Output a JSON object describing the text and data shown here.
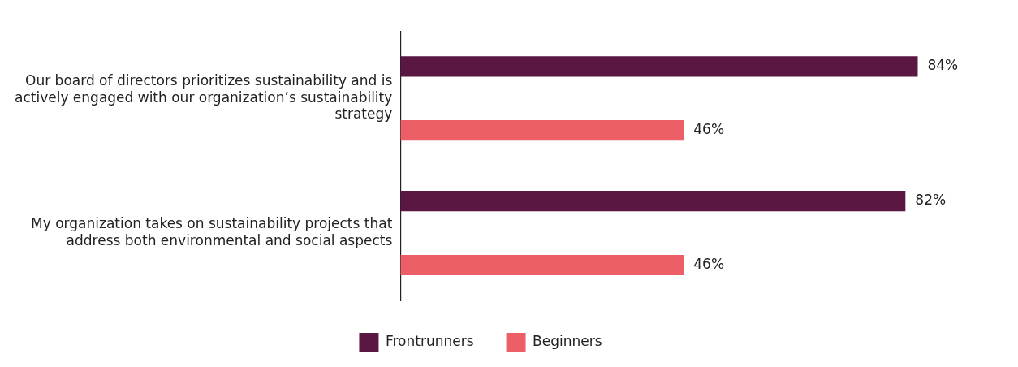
{
  "chart_data": {
    "type": "bar",
    "orientation": "horizontal",
    "categories": [
      "Our board of directors prioritizes sustainability and is actively engaged with our organization’s sustainability strategy",
      "My organization takes on sustainability projects that address both environmental and social aspects"
    ],
    "series": [
      {
        "name": "Frontrunners",
        "color": "#5a1741",
        "values": [
          84,
          82
        ],
        "value_labels": [
          "84%",
          "82%"
        ]
      },
      {
        "name": "Beginners",
        "color": "#ec5f67",
        "values": [
          46,
          46
        ],
        "value_labels": [
          "46%",
          "46%"
        ]
      }
    ],
    "legend": "bottom",
    "grid": false
  }
}
